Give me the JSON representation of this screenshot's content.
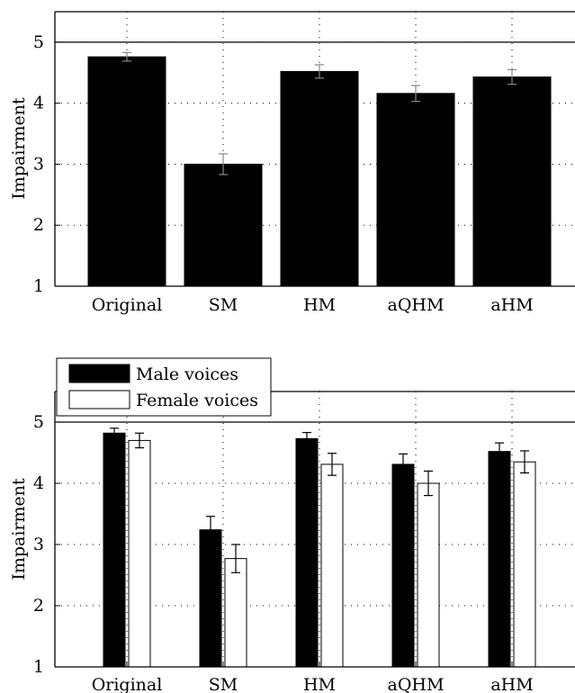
{
  "chart_data": [
    {
      "type": "bar",
      "categories": [
        "Original",
        "SM",
        "HM",
        "aQHM",
        "aHM"
      ],
      "values": [
        4.76,
        3.0,
        4.52,
        4.16,
        4.43
      ],
      "error": [
        0.07,
        0.17,
        0.11,
        0.13,
        0.12
      ],
      "ylabel": "Impairment",
      "yticks": [
        1,
        2,
        3,
        4,
        5
      ],
      "ylim": [
        1,
        5.5
      ],
      "reference_line": 5,
      "grid": "dotted",
      "bar_color": "#000000"
    },
    {
      "type": "bar",
      "categories": [
        "Original",
        "SM",
        "HM",
        "aQHM",
        "aHM"
      ],
      "series": [
        {
          "name": "Male voices",
          "values": [
            4.82,
            3.24,
            4.73,
            4.31,
            4.52
          ],
          "error": [
            0.08,
            0.22,
            0.1,
            0.17,
            0.14
          ],
          "color": "#000000"
        },
        {
          "name": "Female voices",
          "values": [
            4.7,
            2.77,
            4.31,
            4.0,
            4.35
          ],
          "error": [
            0.12,
            0.23,
            0.18,
            0.2,
            0.18
          ],
          "color": "#ffffff"
        }
      ],
      "ylabel": "Impairment",
      "yticks": [
        1,
        2,
        3,
        4,
        5
      ],
      "ylim": [
        1,
        5.5
      ],
      "reference_line": 5,
      "grid": "dotted",
      "legend_position": "top-left"
    }
  ]
}
